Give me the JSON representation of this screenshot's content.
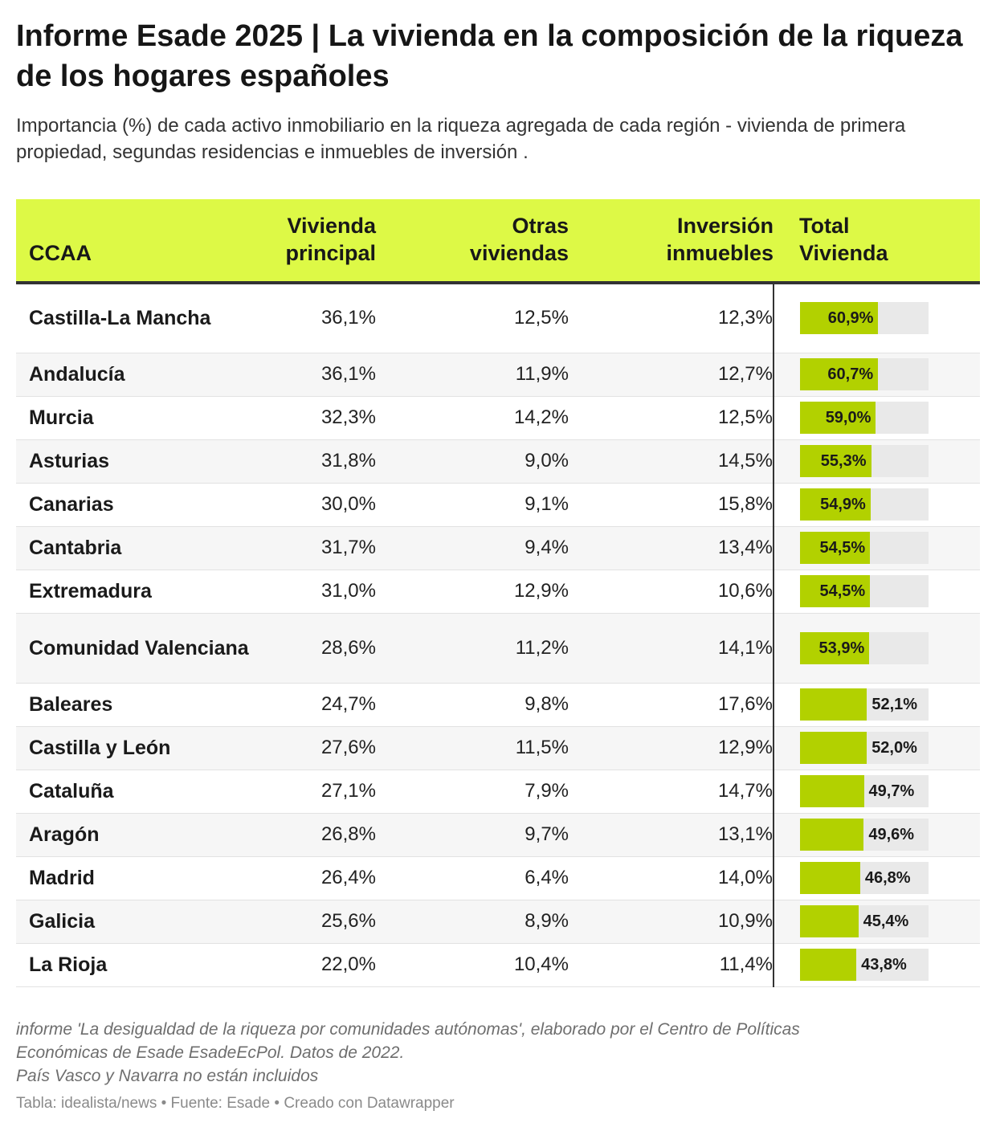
{
  "title": "Informe Esade 2025 | La vivienda en la composición de la riqueza de los hogares españoles",
  "subtitle": "Importancia (%) de cada activo inmobiliario en la riqueza agregada de cada región - vivienda de primera propiedad, segundas residencias e inmuebles de inversión .",
  "colors": {
    "header_bg": "#ddf946",
    "bar": "#b2d100",
    "bar_track": "#e9e9e9"
  },
  "chart_data": {
    "type": "table",
    "columns": [
      {
        "key": "ccaa",
        "lines": [
          "CCAA"
        ]
      },
      {
        "key": "vivienda_principal",
        "lines": [
          "Vivienda",
          "principal"
        ]
      },
      {
        "key": "otras_viviendas",
        "lines": [
          "Otras",
          "viviendas"
        ]
      },
      {
        "key": "inversion_inmuebles",
        "lines": [
          "Inversión",
          "inmuebles"
        ]
      },
      {
        "key": "total_vivienda",
        "lines": [
          "Total",
          "Vivienda"
        ]
      }
    ],
    "bar_max": 100,
    "rows": [
      {
        "ccaa": "Castilla-La Mancha",
        "vivienda_principal": "36,1%",
        "otras_viviendas": "12,5%",
        "inversion_inmuebles": "12,3%",
        "total_vivienda": "60,9%",
        "total_value": 60.9
      },
      {
        "ccaa": "Andalucía",
        "vivienda_principal": "36,1%",
        "otras_viviendas": "11,9%",
        "inversion_inmuebles": "12,7%",
        "total_vivienda": "60,7%",
        "total_value": 60.7
      },
      {
        "ccaa": "Murcia",
        "vivienda_principal": "32,3%",
        "otras_viviendas": "14,2%",
        "inversion_inmuebles": "12,5%",
        "total_vivienda": "59,0%",
        "total_value": 59.0
      },
      {
        "ccaa": "Asturias",
        "vivienda_principal": "31,8%",
        "otras_viviendas": "9,0%",
        "inversion_inmuebles": "14,5%",
        "total_vivienda": "55,3%",
        "total_value": 55.3
      },
      {
        "ccaa": "Canarias",
        "vivienda_principal": "30,0%",
        "otras_viviendas": "9,1%",
        "inversion_inmuebles": "15,8%",
        "total_vivienda": "54,9%",
        "total_value": 54.9
      },
      {
        "ccaa": "Cantabria",
        "vivienda_principal": "31,7%",
        "otras_viviendas": "9,4%",
        "inversion_inmuebles": "13,4%",
        "total_vivienda": "54,5%",
        "total_value": 54.5
      },
      {
        "ccaa": "Extremadura",
        "vivienda_principal": "31,0%",
        "otras_viviendas": "12,9%",
        "inversion_inmuebles": "10,6%",
        "total_vivienda": "54,5%",
        "total_value": 54.5
      },
      {
        "ccaa": "Comunidad Valenciana",
        "vivienda_principal": "28,6%",
        "otras_viviendas": "11,2%",
        "inversion_inmuebles": "14,1%",
        "total_vivienda": "53,9%",
        "total_value": 53.9
      },
      {
        "ccaa": "Baleares",
        "vivienda_principal": "24,7%",
        "otras_viviendas": "9,8%",
        "inversion_inmuebles": "17,6%",
        "total_vivienda": "52,1%",
        "total_value": 52.1
      },
      {
        "ccaa": "Castilla y León",
        "vivienda_principal": "27,6%",
        "otras_viviendas": "11,5%",
        "inversion_inmuebles": "12,9%",
        "total_vivienda": "52,0%",
        "total_value": 52.0
      },
      {
        "ccaa": "Cataluña",
        "vivienda_principal": "27,1%",
        "otras_viviendas": "7,9%",
        "inversion_inmuebles": "14,7%",
        "total_vivienda": "49,7%",
        "total_value": 49.7
      },
      {
        "ccaa": "Aragón",
        "vivienda_principal": "26,8%",
        "otras_viviendas": "9,7%",
        "inversion_inmuebles": "13,1%",
        "total_vivienda": "49,6%",
        "total_value": 49.6
      },
      {
        "ccaa": "Madrid",
        "vivienda_principal": "26,4%",
        "otras_viviendas": "6,4%",
        "inversion_inmuebles": "14,0%",
        "total_vivienda": "46,8%",
        "total_value": 46.8
      },
      {
        "ccaa": "Galicia",
        "vivienda_principal": "25,6%",
        "otras_viviendas": "8,9%",
        "inversion_inmuebles": "10,9%",
        "total_vivienda": "45,4%",
        "total_value": 45.4
      },
      {
        "ccaa": "La Rioja",
        "vivienda_principal": "22,0%",
        "otras_viviendas": "10,4%",
        "inversion_inmuebles": "11,4%",
        "total_vivienda": "43,8%",
        "total_value": 43.8
      }
    ]
  },
  "notes": [
    "informe 'La desigualdad de la riqueza por comunidades autónomas', elaborado por el Centro de Políticas",
    "Económicas de Esade EsadeEcPol. Datos de 2022.",
    "País Vasco y Navarra no están incluidos"
  ],
  "source_line": "Tabla: idealista/news • Fuente: Esade • Creado con Datawrapper"
}
